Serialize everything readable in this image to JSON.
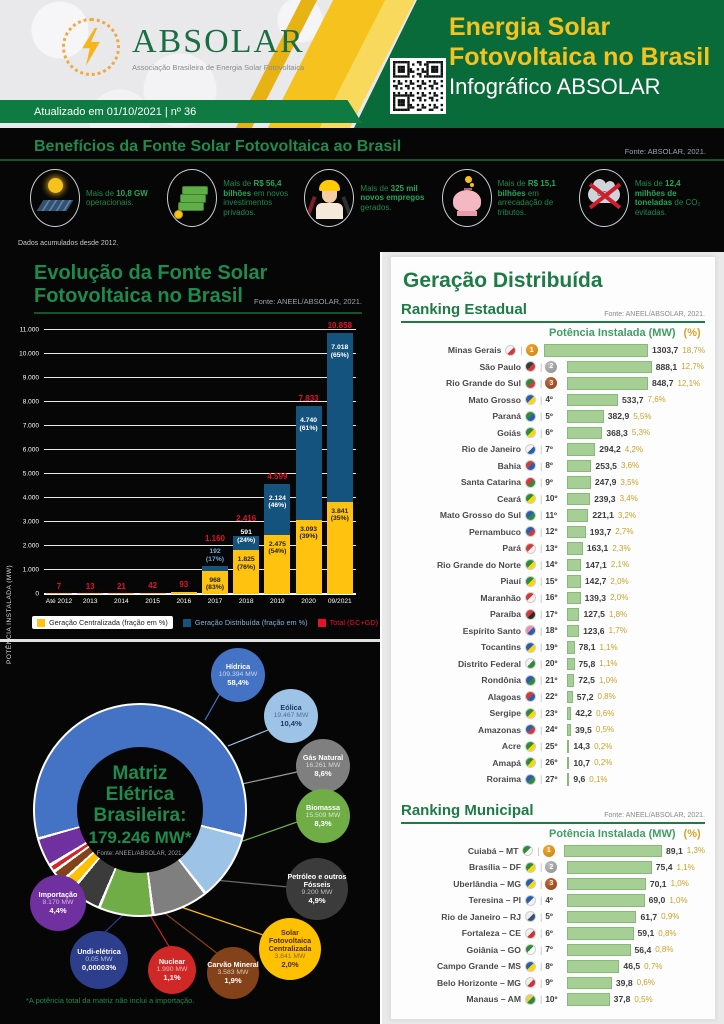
{
  "header": {
    "logo": {
      "name": "ABSOLAR",
      "subtitle": "Associação Brasileira de Energia Solar Fotovoltaica"
    },
    "updated": "Atualizado em 01/10/2021 | nº 36",
    "title_line1": "Energia Solar",
    "title_line2": "Fotovoltaica no Brasil",
    "title_line3": "Infográfico ABSOLAR"
  },
  "benefits": {
    "title": "Benefícios da Fonte Solar Fotovoltaica ao Brasil",
    "fonte": "Fonte: ABSOLAR, 2021.",
    "footnote": "Dados acumulados desde 2012.",
    "items": [
      {
        "icon": "solar-panel-icon",
        "lead": "Mais de ",
        "bold": "10,8 GW",
        "rest": " operacionais."
      },
      {
        "icon": "money-icon",
        "lead": "Mais de ",
        "bold": "R$ 56,4 bilhões",
        "rest": " em novos investimentos privados."
      },
      {
        "icon": "worker-icon",
        "lead": "Mais de ",
        "bold": "325 mil novos empregos",
        "rest": " gerados."
      },
      {
        "icon": "piggy-bank-icon",
        "lead": "Mais de ",
        "bold": "R$ 15,1 bilhões",
        "rest": " em arrecadação de tributos."
      },
      {
        "icon": "co2-icon",
        "lead": "Mais de ",
        "bold": "12,4 milhões de toneladas",
        "rest": " de CO₂ evitadas."
      }
    ]
  },
  "gd_section_title": "Geração Distribuída",
  "chart_data": [
    {
      "id": "evolution",
      "type": "bar",
      "title_line1": "Evolução da Fonte Solar",
      "title_line2": "Fotovoltaica no Brasil",
      "fonte": "Fonte: ANEEL/ABSOLAR, 2021.",
      "ylabel": "POTÊNCIA INSTALADA (MW)",
      "ylim": [
        0,
        11000
      ],
      "ytick_step": 1000,
      "categories": [
        "Até 2012",
        "2013",
        "2014",
        "2015",
        "2016",
        "2017",
        "2018",
        "2019",
        "2020",
        "09/2021"
      ],
      "series": [
        {
          "name": "Geração Centralizada (fração em %)",
          "color": "#ffc20e",
          "values": [
            7,
            13,
            21,
            42,
            93,
            968,
            1825,
            2475,
            3093,
            3841
          ],
          "labels": [
            "",
            "",
            "",
            "",
            "",
            "968|(83%)",
            "1.825|(76%)",
            "2.475|(54%)",
            "3.093|(39%)",
            "3.841|(35%)"
          ]
        },
        {
          "name": "Geração Distribuída (fração em %)",
          "color": "#15537f",
          "values": [
            0,
            0,
            0,
            0,
            0,
            192,
            591,
            2124,
            4740,
            7018
          ],
          "labels": [
            "",
            "",
            "",
            "",
            "",
            "192|(17%)",
            "591|(24%)",
            "2.124|(46%)",
            "4.740|(61%)",
            "7.018|(65%)"
          ]
        }
      ],
      "totals": {
        "name": "Total (GC+GD)",
        "color": "#e8112d",
        "labels": [
          "7",
          "13",
          "21",
          "42",
          "93",
          "1.160",
          "2.416",
          "4.599",
          "7.833",
          "10.858"
        ]
      }
    },
    {
      "id": "matriz",
      "type": "pie",
      "title": "Matriz Elétrica Brasileira:",
      "total": "179.246 MW*",
      "fonte": "Fonte: ANEEL/ABSOLAR, 2021.",
      "footnote": "*A potência total da matriz não inclui a importação.",
      "slices": [
        {
          "label": "Hídrica",
          "mw": "109.394 MW",
          "pct": "58,4%",
          "value": 58.4,
          "color": "#4472c4"
        },
        {
          "label": "Eólica",
          "mw": "19.467 MW",
          "pct": "10,4%",
          "value": 10.4,
          "color": "#9dc3e6"
        },
        {
          "label": "Gás Natural",
          "mw": "16.261 MW",
          "pct": "8,6%",
          "value": 8.6,
          "color": "#7f7f7f"
        },
        {
          "label": "Biomassa",
          "mw": "15.509 MW",
          "pct": "8,3%",
          "value": 8.3,
          "color": "#70ad47"
        },
        {
          "label": "Petróleo e outros Fósseis",
          "mw": "9.200 MW",
          "pct": "4,9%",
          "value": 4.9,
          "color": "#3b3b3b"
        },
        {
          "label": "Solar Fotovoltaica Centralizada",
          "mw": "3.841 MW",
          "pct": "2,0%",
          "value": 2.0,
          "color": "#ffc000"
        },
        {
          "label": "Carvão Mineral",
          "mw": "3.583 MW",
          "pct": "1,9%",
          "value": 1.9,
          "color": "#84421a"
        },
        {
          "label": "Nuclear",
          "mw": "1.990 MW",
          "pct": "1,1%",
          "value": 1.1,
          "color": "#d02727"
        },
        {
          "label": "Undi-elétrica",
          "mw": "0,05 MW",
          "pct": "0,00003%",
          "value": 3e-05,
          "color": "#2c3e8c"
        },
        {
          "label": "Importação",
          "mw": "8.170 MW",
          "pct": "4,4%",
          "value": 4.4,
          "color": "#7030a0"
        }
      ]
    },
    {
      "id": "ranking_estadual",
      "type": "bar",
      "title": "Ranking Estadual",
      "fonte": "Fonte: ANEEL/ABSOLAR, 2021.",
      "col_mw": "Potência Instalada (MW)",
      "col_pct": "(%)",
      "rows": [
        {
          "name": "Minas Gerais",
          "rank": 1,
          "value": 1303.7,
          "value_label": "1303,7",
          "pct": "18,7%",
          "flag": [
            "#f2f2f2",
            "#d03a3a"
          ]
        },
        {
          "name": "São Paulo",
          "rank": 2,
          "value": 888.1,
          "value_label": "888,1",
          "pct": "12,7%",
          "flag": [
            "#3a3a3a",
            "#d03a3a"
          ]
        },
        {
          "name": "Rio Grande do Sul",
          "rank": 3,
          "value": 848.7,
          "value_label": "848,7",
          "pct": "12,1%",
          "flag": [
            "#2e8b3a",
            "#d03a3a"
          ]
        },
        {
          "name": "Mato Grosso",
          "rank": "4º",
          "value": 533.7,
          "value_label": "533,7",
          "pct": "7,6%",
          "flag": [
            "#2b5fad",
            "#ffd700"
          ]
        },
        {
          "name": "Paraná",
          "rank": "5º",
          "value": 382.9,
          "value_label": "382,9",
          "pct": "5,5%",
          "flag": [
            "#2e8b3a",
            "#2b5fad"
          ]
        },
        {
          "name": "Goiás",
          "rank": "6º",
          "value": 368.3,
          "value_label": "368,3",
          "pct": "5,3%",
          "flag": [
            "#2e8b3a",
            "#ffd700"
          ]
        },
        {
          "name": "Rio de Janeiro",
          "rank": "7º",
          "value": 294.2,
          "value_label": "294,2",
          "pct": "4,2%",
          "flag": [
            "#f2f2f2",
            "#2b5fad"
          ]
        },
        {
          "name": "Bahia",
          "rank": "8º",
          "value": 253.5,
          "value_label": "253,5",
          "pct": "3,6%",
          "flag": [
            "#d03a3a",
            "#2b5fad"
          ]
        },
        {
          "name": "Santa Catarina",
          "rank": "9º",
          "value": 247.9,
          "value_label": "247,9",
          "pct": "3,5%",
          "flag": [
            "#d03a3a",
            "#2e8b3a"
          ]
        },
        {
          "name": "Ceará",
          "rank": "10º",
          "value": 239.3,
          "value_label": "239,3",
          "pct": "3,4%",
          "flag": [
            "#2e8b3a",
            "#ffd700"
          ]
        },
        {
          "name": "Mato Grosso do Sul",
          "rank": "11º",
          "value": 221.1,
          "value_label": "221,1",
          "pct": "3,2%",
          "flag": [
            "#2b5fad",
            "#2e8b3a"
          ]
        },
        {
          "name": "Pernambuco",
          "rank": "12º",
          "value": 193.7,
          "value_label": "193,7",
          "pct": "2,7%",
          "flag": [
            "#2b5fad",
            "#d03a3a"
          ]
        },
        {
          "name": "Pará",
          "rank": "13º",
          "value": 163.1,
          "value_label": "163,1",
          "pct": "2,3%",
          "flag": [
            "#d03a3a",
            "#f2f2f2"
          ]
        },
        {
          "name": "Rio Grande do Norte",
          "rank": "14º",
          "value": 147.1,
          "value_label": "147,1",
          "pct": "2,1%",
          "flag": [
            "#2e8b3a",
            "#ffd700"
          ]
        },
        {
          "name": "Piauí",
          "rank": "15º",
          "value": 142.7,
          "value_label": "142,7",
          "pct": "2,0%",
          "flag": [
            "#2e8b3a",
            "#ffd700"
          ]
        },
        {
          "name": "Maranhão",
          "rank": "16º",
          "value": 139.3,
          "value_label": "139,3",
          "pct": "2,0%",
          "flag": [
            "#d03a3a",
            "#f2f2f2"
          ]
        },
        {
          "name": "Paraíba",
          "rank": "17º",
          "value": 127.5,
          "value_label": "127,5",
          "pct": "1,8%",
          "flag": [
            "#d03a3a",
            "#2a2a2a"
          ]
        },
        {
          "name": "Espírito Santo",
          "rank": "18º",
          "value": 123.6,
          "value_label": "123,6",
          "pct": "1,7%",
          "flag": [
            "#f28cb1",
            "#2b5fad"
          ]
        },
        {
          "name": "Tocantins",
          "rank": "19º",
          "value": 78.1,
          "value_label": "78,1",
          "pct": "1,1%",
          "flag": [
            "#2b5fad",
            "#ffd700"
          ]
        },
        {
          "name": "Distrito Federal",
          "rank": "20º",
          "value": 75.8,
          "value_label": "75,8",
          "pct": "1,1%",
          "flag": [
            "#f2f2f2",
            "#2e8b3a"
          ]
        },
        {
          "name": "Rondônia",
          "rank": "21º",
          "value": 72.5,
          "value_label": "72,5",
          "pct": "1,0%",
          "flag": [
            "#2b5fad",
            "#2e8b3a"
          ]
        },
        {
          "name": "Alagoas",
          "rank": "22º",
          "value": 57.2,
          "value_label": "57,2",
          "pct": "0,8%",
          "flag": [
            "#d03a3a",
            "#2b5fad"
          ]
        },
        {
          "name": "Sergipe",
          "rank": "23º",
          "value": 42.2,
          "value_label": "42,2",
          "pct": "0,6%",
          "flag": [
            "#2e8b3a",
            "#ffd700"
          ]
        },
        {
          "name": "Amazonas",
          "rank": "24º",
          "value": 39.5,
          "value_label": "39,5",
          "pct": "0,5%",
          "flag": [
            "#2b5fad",
            "#d03a3a"
          ]
        },
        {
          "name": "Acre",
          "rank": "25º",
          "value": 14.3,
          "value_label": "14,3",
          "pct": "0,2%",
          "flag": [
            "#2e8b3a",
            "#ffd700"
          ]
        },
        {
          "name": "Amapá",
          "rank": "26º",
          "value": 10.7,
          "value_label": "10,7",
          "pct": "0,2%",
          "flag": [
            "#2e8b3a",
            "#ffd700"
          ]
        },
        {
          "name": "Roraima",
          "rank": "27º",
          "value": 9.6,
          "value_label": "9,6",
          "pct": "0,1%",
          "flag": [
            "#2b5fad",
            "#2e8b3a"
          ]
        }
      ]
    },
    {
      "id": "ranking_municipal",
      "type": "bar",
      "title": "Ranking Municipal",
      "fonte": "Fonte: ANEEL/ABSOLAR, 2021.",
      "col_mw": "Potência Instalada (MW)",
      "col_pct": "(%)",
      "rows": [
        {
          "name": "Cuiabá – MT",
          "rank": 1,
          "value": 89.1,
          "value_label": "89,1",
          "pct": "1,3%",
          "flag": [
            "#2e8b3a",
            "#f7f7f7"
          ]
        },
        {
          "name": "Brasília – DF",
          "rank": 2,
          "value": 75.4,
          "value_label": "75,4",
          "pct": "1,1%",
          "flag": [
            "#2e8b3a",
            "#ffd700"
          ]
        },
        {
          "name": "Uberlândia – MG",
          "rank": 3,
          "value": 70.1,
          "value_label": "70,1",
          "pct": "1,0%",
          "flag": [
            "#2b5fad",
            "#ffd700"
          ]
        },
        {
          "name": "Teresina – PI",
          "rank": "4º",
          "value": 69.0,
          "value_label": "69,0",
          "pct": "1,0%",
          "flag": [
            "#2b5fad",
            "#f2f2f2"
          ]
        },
        {
          "name": "Rio de Janeiro – RJ",
          "rank": "5º",
          "value": 61.7,
          "value_label": "61,7",
          "pct": "0,9%",
          "flag": [
            "#eeeeee",
            "#35507a"
          ]
        },
        {
          "name": "Fortaleza – CE",
          "rank": "6º",
          "value": 59.1,
          "value_label": "59,1",
          "pct": "0,8%",
          "flag": [
            "#eeeeee",
            "#cc3333"
          ]
        },
        {
          "name": "Goiânia – GO",
          "rank": "7º",
          "value": 56.4,
          "value_label": "56,4",
          "pct": "0,8%",
          "flag": [
            "#2e8b3a",
            "#ffffff"
          ]
        },
        {
          "name": "Campo Grande – MS",
          "rank": "8º",
          "value": 46.5,
          "value_label": "46,5",
          "pct": "0,7%",
          "flag": [
            "#2b5fad",
            "#ffd700"
          ]
        },
        {
          "name": "Belo Horizonte – MG",
          "rank": "9º",
          "value": 39.8,
          "value_label": "39,8",
          "pct": "0,6%",
          "flag": [
            "#eeeeee",
            "#cc3333"
          ]
        },
        {
          "name": "Manaus – AM",
          "rank": "10º",
          "value": 37.8,
          "value_label": "37,8",
          "pct": "0,5%",
          "flag": [
            "#e7cf4f",
            "#2e8b3a"
          ]
        }
      ]
    }
  ]
}
